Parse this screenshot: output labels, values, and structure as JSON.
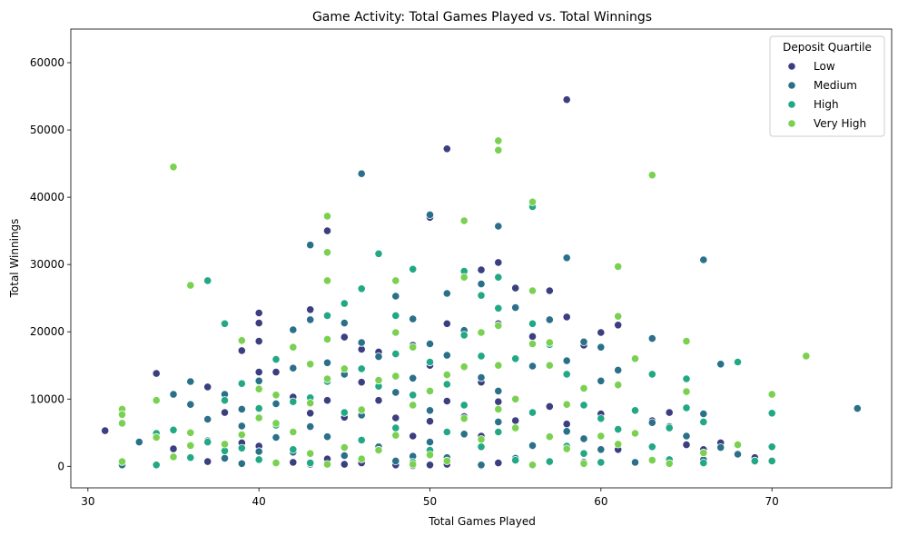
{
  "chart_data": {
    "type": "scatter",
    "title": "Game Activity: Total Games Played vs. Total Winnings",
    "xlabel": "Total Games Played",
    "ylabel": "Total Winnings",
    "xlim": [
      29,
      77
    ],
    "ylim": [
      -3200,
      65000
    ],
    "x_ticks": [
      30,
      40,
      50,
      60,
      70
    ],
    "y_ticks": [
      0,
      10000,
      20000,
      30000,
      40000,
      50000,
      60000
    ],
    "grid": false,
    "legend": {
      "title": "Deposit Quartile",
      "placement": "top-right"
    },
    "series": [
      {
        "name": "Low",
        "color": "#3b3f7f",
        "points": [
          [
            31,
            5300
          ],
          [
            34,
            13800
          ],
          [
            35,
            2600
          ],
          [
            37,
            11800
          ],
          [
            37,
            700
          ],
          [
            38,
            8000
          ],
          [
            39,
            17200
          ],
          [
            39,
            3500
          ],
          [
            40,
            22800
          ],
          [
            40,
            21300
          ],
          [
            40,
            18600
          ],
          [
            40,
            14000
          ],
          [
            40,
            3000
          ],
          [
            41,
            14000
          ],
          [
            41,
            400
          ],
          [
            42,
            10300
          ],
          [
            42,
            600
          ],
          [
            43,
            23300
          ],
          [
            43,
            7900
          ],
          [
            43,
            300
          ],
          [
            44,
            35000
          ],
          [
            44,
            9800
          ],
          [
            44,
            1100
          ],
          [
            45,
            19200
          ],
          [
            45,
            7300
          ],
          [
            45,
            300
          ],
          [
            46,
            17400
          ],
          [
            46,
            12500
          ],
          [
            46,
            500
          ],
          [
            47,
            17000
          ],
          [
            47,
            9800
          ],
          [
            48,
            7200
          ],
          [
            48,
            200
          ],
          [
            49,
            18000
          ],
          [
            49,
            4500
          ],
          [
            49,
            100
          ],
          [
            50,
            37000
          ],
          [
            50,
            15000
          ],
          [
            50,
            6700
          ],
          [
            50,
            200
          ],
          [
            51,
            47200
          ],
          [
            51,
            21200
          ],
          [
            51,
            9700
          ],
          [
            51,
            300
          ],
          [
            52,
            20000
          ],
          [
            52,
            7400
          ],
          [
            53,
            29200
          ],
          [
            53,
            12500
          ],
          [
            53,
            4500
          ],
          [
            53,
            100
          ],
          [
            54,
            30300
          ],
          [
            54,
            21200
          ],
          [
            54,
            9600
          ],
          [
            54,
            500
          ],
          [
            55,
            26500
          ],
          [
            55,
            6800
          ],
          [
            56,
            19300
          ],
          [
            56,
            3000
          ],
          [
            57,
            26100
          ],
          [
            57,
            8900
          ],
          [
            58,
            54500
          ],
          [
            58,
            22200
          ],
          [
            58,
            6300
          ],
          [
            59,
            18000
          ],
          [
            59,
            600
          ],
          [
            60,
            19900
          ],
          [
            60,
            7800
          ],
          [
            61,
            21000
          ],
          [
            61,
            2500
          ],
          [
            63,
            6800
          ],
          [
            64,
            8000
          ],
          [
            65,
            3200
          ],
          [
            66,
            2500
          ],
          [
            67,
            3500
          ],
          [
            69,
            1300
          ]
        ]
      },
      {
        "name": "Medium",
        "color": "#2b7089",
        "points": [
          [
            32,
            200
          ],
          [
            33,
            3600
          ],
          [
            35,
            10700
          ],
          [
            36,
            12600
          ],
          [
            36,
            9200
          ],
          [
            37,
            7000
          ],
          [
            37,
            3800
          ],
          [
            38,
            10700
          ],
          [
            38,
            1200
          ],
          [
            39,
            8500
          ],
          [
            39,
            6000
          ],
          [
            39,
            400
          ],
          [
            40,
            12700
          ],
          [
            40,
            2200
          ],
          [
            41,
            9300
          ],
          [
            41,
            4300
          ],
          [
            42,
            20300
          ],
          [
            42,
            14600
          ],
          [
            42,
            2100
          ],
          [
            43,
            32900
          ],
          [
            43,
            21800
          ],
          [
            43,
            5900
          ],
          [
            44,
            15400
          ],
          [
            44,
            4400
          ],
          [
            45,
            21300
          ],
          [
            45,
            13700
          ],
          [
            45,
            1600
          ],
          [
            46,
            43500
          ],
          [
            46,
            18400
          ],
          [
            46,
            7600
          ],
          [
            47,
            16300
          ],
          [
            47,
            2900
          ],
          [
            48,
            25300
          ],
          [
            48,
            11000
          ],
          [
            48,
            800
          ],
          [
            49,
            21900
          ],
          [
            49,
            13100
          ],
          [
            49,
            1500
          ],
          [
            50,
            37400
          ],
          [
            50,
            18200
          ],
          [
            50,
            8300
          ],
          [
            50,
            3600
          ],
          [
            51,
            25700
          ],
          [
            51,
            16500
          ],
          [
            51,
            1300
          ],
          [
            52,
            20200
          ],
          [
            52,
            4800
          ],
          [
            53,
            27100
          ],
          [
            53,
            13200
          ],
          [
            53,
            200
          ],
          [
            54,
            35700
          ],
          [
            54,
            11200
          ],
          [
            54,
            6600
          ],
          [
            55,
            23600
          ],
          [
            55,
            1200
          ],
          [
            56,
            14900
          ],
          [
            56,
            3100
          ],
          [
            57,
            21800
          ],
          [
            57,
            600
          ],
          [
            58,
            31000
          ],
          [
            58,
            15700
          ],
          [
            58,
            5200
          ],
          [
            59,
            18500
          ],
          [
            59,
            4100
          ],
          [
            60,
            17700
          ],
          [
            60,
            12700
          ],
          [
            60,
            2500
          ],
          [
            61,
            14300
          ],
          [
            62,
            600
          ],
          [
            63,
            19000
          ],
          [
            63,
            6500
          ],
          [
            64,
            5900
          ],
          [
            65,
            4500
          ],
          [
            66,
            30700
          ],
          [
            66,
            7800
          ],
          [
            66,
            1000
          ],
          [
            67,
            15200
          ],
          [
            67,
            2800
          ],
          [
            68,
            1800
          ],
          [
            69,
            700
          ],
          [
            75,
            8600
          ]
        ]
      },
      {
        "name": "High",
        "color": "#22a884",
        "points": [
          [
            34,
            4900
          ],
          [
            34,
            200
          ],
          [
            35,
            5400
          ],
          [
            36,
            1300
          ],
          [
            37,
            27600
          ],
          [
            37,
            3600
          ],
          [
            38,
            21200
          ],
          [
            38,
            9800
          ],
          [
            38,
            2300
          ],
          [
            39,
            12300
          ],
          [
            39,
            2700
          ],
          [
            40,
            8600
          ],
          [
            40,
            1000
          ],
          [
            41,
            15900
          ],
          [
            41,
            6100
          ],
          [
            42,
            9600
          ],
          [
            42,
            2500
          ],
          [
            43,
            10200
          ],
          [
            43,
            500
          ],
          [
            44,
            22400
          ],
          [
            44,
            12600
          ],
          [
            45,
            24200
          ],
          [
            45,
            8000
          ],
          [
            46,
            26400
          ],
          [
            46,
            14500
          ],
          [
            46,
            3900
          ],
          [
            47,
            31600
          ],
          [
            47,
            11900
          ],
          [
            48,
            22400
          ],
          [
            48,
            16700
          ],
          [
            48,
            5700
          ],
          [
            49,
            29300
          ],
          [
            49,
            10600
          ],
          [
            49,
            600
          ],
          [
            50,
            15500
          ],
          [
            50,
            2400
          ],
          [
            51,
            12200
          ],
          [
            51,
            5100
          ],
          [
            52,
            29000
          ],
          [
            52,
            19500
          ],
          [
            52,
            9100
          ],
          [
            53,
            25400
          ],
          [
            53,
            16400
          ],
          [
            53,
            2900
          ],
          [
            54,
            28100
          ],
          [
            54,
            23500
          ],
          [
            54,
            5100
          ],
          [
            55,
            16000
          ],
          [
            55,
            900
          ],
          [
            56,
            38600
          ],
          [
            56,
            21200
          ],
          [
            56,
            8000
          ],
          [
            57,
            18100
          ],
          [
            57,
            700
          ],
          [
            58,
            13700
          ],
          [
            58,
            3000
          ],
          [
            59,
            9100
          ],
          [
            59,
            1900
          ],
          [
            60,
            7100
          ],
          [
            60,
            600
          ],
          [
            61,
            5500
          ],
          [
            62,
            8300
          ],
          [
            63,
            13700
          ],
          [
            63,
            2900
          ],
          [
            64,
            5700
          ],
          [
            64,
            1000
          ],
          [
            65,
            13000
          ],
          [
            65,
            8700
          ],
          [
            66,
            6600
          ],
          [
            66,
            500
          ],
          [
            68,
            15500
          ],
          [
            69,
            800
          ],
          [
            70,
            7900
          ],
          [
            70,
            2900
          ],
          [
            70,
            800
          ]
        ]
      },
      {
        "name": "Very High",
        "color": "#7ad151",
        "points": [
          [
            32,
            8500
          ],
          [
            32,
            7700
          ],
          [
            32,
            6400
          ],
          [
            32,
            700
          ],
          [
            34,
            9800
          ],
          [
            34,
            4300
          ],
          [
            35,
            44500
          ],
          [
            35,
            1400
          ],
          [
            36,
            26900
          ],
          [
            36,
            5000
          ],
          [
            36,
            3100
          ],
          [
            38,
            3300
          ],
          [
            39,
            18700
          ],
          [
            39,
            4700
          ],
          [
            40,
            11500
          ],
          [
            40,
            7200
          ],
          [
            41,
            10600
          ],
          [
            41,
            6400
          ],
          [
            41,
            500
          ],
          [
            42,
            17700
          ],
          [
            42,
            5100
          ],
          [
            43,
            15200
          ],
          [
            43,
            9400
          ],
          [
            43,
            1900
          ],
          [
            44,
            37200
          ],
          [
            44,
            31800
          ],
          [
            44,
            27600
          ],
          [
            44,
            18900
          ],
          [
            44,
            13000
          ],
          [
            44,
            300
          ],
          [
            45,
            14500
          ],
          [
            45,
            2800
          ],
          [
            46,
            8400
          ],
          [
            46,
            1100
          ],
          [
            47,
            12800
          ],
          [
            47,
            2400
          ],
          [
            48,
            27600
          ],
          [
            48,
            19900
          ],
          [
            48,
            13400
          ],
          [
            48,
            4600
          ],
          [
            49,
            17700
          ],
          [
            49,
            9100
          ],
          [
            49,
            300
          ],
          [
            50,
            11200
          ],
          [
            50,
            1700
          ],
          [
            51,
            13600
          ],
          [
            51,
            800
          ],
          [
            52,
            36500
          ],
          [
            52,
            28100
          ],
          [
            52,
            14800
          ],
          [
            52,
            7100
          ],
          [
            53,
            19900
          ],
          [
            53,
            4000
          ],
          [
            54,
            48400
          ],
          [
            54,
            47000
          ],
          [
            54,
            20900
          ],
          [
            54,
            15000
          ],
          [
            54,
            8500
          ],
          [
            55,
            10000
          ],
          [
            55,
            5700
          ],
          [
            56,
            39300
          ],
          [
            56,
            26100
          ],
          [
            56,
            18200
          ],
          [
            56,
            200
          ],
          [
            57,
            18400
          ],
          [
            57,
            15000
          ],
          [
            57,
            4400
          ],
          [
            58,
            9200
          ],
          [
            58,
            2600
          ],
          [
            59,
            11600
          ],
          [
            59,
            400
          ],
          [
            60,
            4500
          ],
          [
            61,
            29700
          ],
          [
            61,
            22300
          ],
          [
            61,
            12100
          ],
          [
            61,
            3300
          ],
          [
            62,
            16000
          ],
          [
            62,
            4900
          ],
          [
            63,
            43300
          ],
          [
            63,
            900
          ],
          [
            64,
            400
          ],
          [
            65,
            18600
          ],
          [
            65,
            11100
          ],
          [
            66,
            2000
          ],
          [
            68,
            3200
          ],
          [
            70,
            10700
          ],
          [
            72,
            16400
          ]
        ]
      }
    ]
  }
}
